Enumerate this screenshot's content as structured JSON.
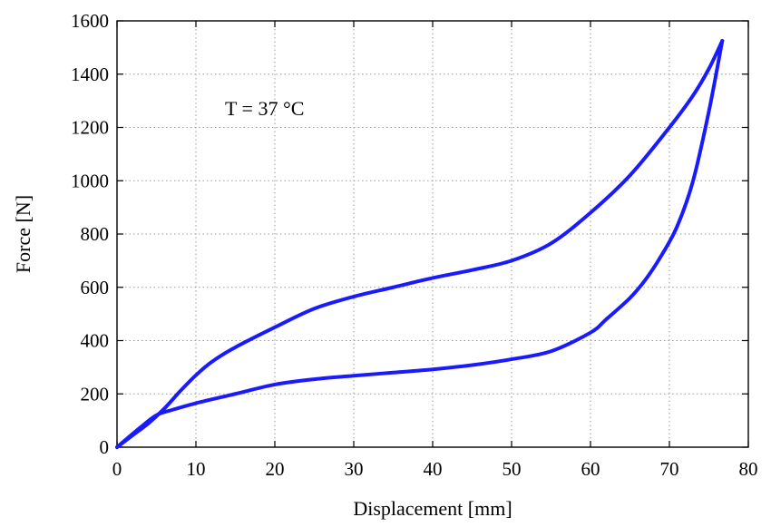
{
  "chart_data": {
    "type": "line",
    "xlabel": "Displacement [mm]",
    "ylabel": "Force [N]",
    "xlim": [
      0,
      80
    ],
    "ylim": [
      0,
      1600
    ],
    "xticks": [
      0,
      10,
      20,
      30,
      40,
      50,
      60,
      70,
      80
    ],
    "yticks": [
      0,
      200,
      400,
      600,
      800,
      1000,
      1200,
      1400,
      1600
    ],
    "grid": true,
    "annotation": "T = 37 °C",
    "line_color": "#1a1aff",
    "series": [
      {
        "x": [
          0,
          2,
          4,
          6,
          8,
          10,
          12,
          15,
          20,
          25,
          30,
          35,
          40,
          45,
          50,
          55,
          60,
          65,
          70,
          73,
          75,
          76.7
        ],
        "y": [
          0,
          45,
          90,
          145,
          210,
          270,
          320,
          375,
          450,
          520,
          565,
          600,
          635,
          665,
          700,
          765,
          880,
          1020,
          1200,
          1320,
          1420,
          1525
        ]
      },
      {
        "x": [
          76.7,
          75,
          73,
          71,
          69,
          67,
          65,
          62,
          60,
          55,
          50,
          45,
          40,
          35,
          30,
          25,
          20,
          15,
          10,
          7,
          5,
          3,
          0
        ],
        "y": [
          1525,
          1260,
          1000,
          830,
          720,
          630,
          560,
          480,
          430,
          360,
          330,
          308,
          292,
          280,
          268,
          255,
          235,
          200,
          165,
          140,
          120,
          75,
          0
        ]
      }
    ]
  }
}
